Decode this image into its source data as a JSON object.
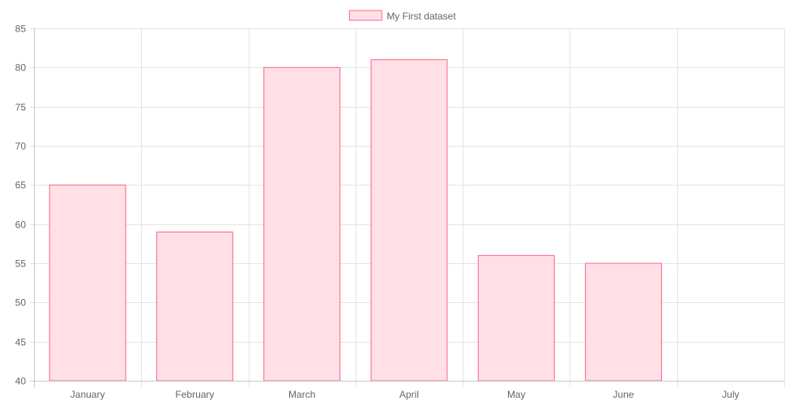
{
  "chart_data": {
    "type": "bar",
    "categories": [
      "January",
      "February",
      "March",
      "April",
      "May",
      "June",
      "July"
    ],
    "series": [
      {
        "name": "My First dataset",
        "values": [
          65,
          59,
          80,
          81,
          56,
          55,
          40
        ],
        "fill_color": "#ffe0e6",
        "border_color": "#ff6384"
      }
    ],
    "ylim": [
      40,
      85
    ],
    "y_ticks": [
      "40",
      "45",
      "50",
      "55",
      "60",
      "65",
      "70",
      "75",
      "80",
      "85"
    ],
    "grid": true,
    "legend_position": "top"
  }
}
